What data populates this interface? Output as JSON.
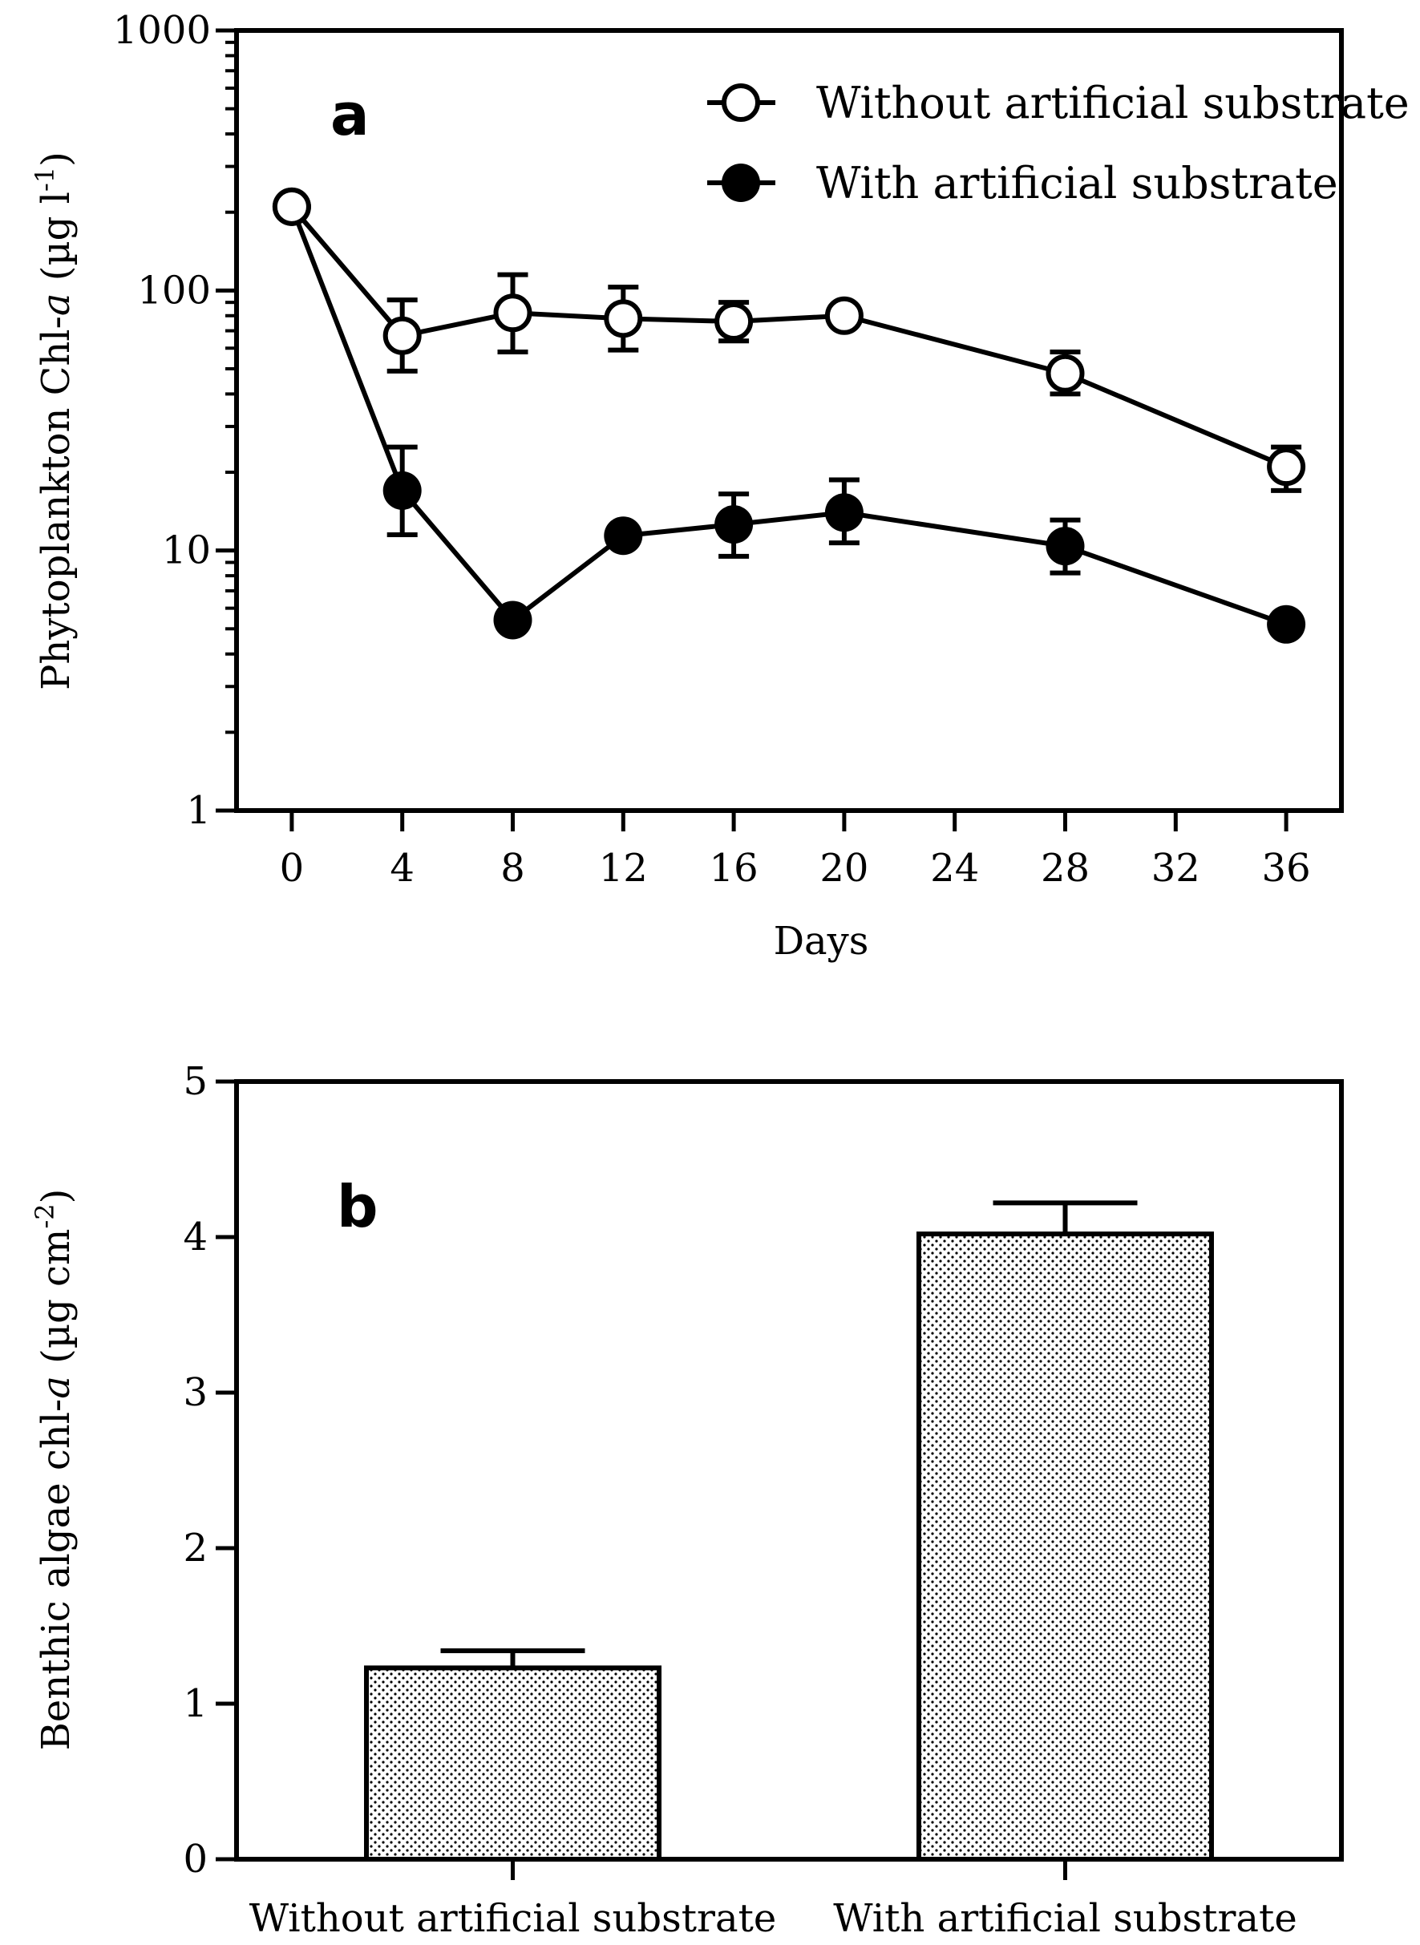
{
  "chart_data": [
    {
      "type": "line",
      "panel_label": "a",
      "yscale": "log",
      "ylim": [
        1,
        1000
      ],
      "xlim": [
        -2,
        38
      ],
      "xlabel": "Days",
      "ylabel_prefix": "Phytoplankton Chl-",
      "ylabel_italic": "a",
      "ylabel_units_open": " (µg l",
      "ylabel_units_sup": "-1",
      "ylabel_units_close": ")",
      "xticks": [
        0,
        4,
        8,
        12,
        16,
        20,
        24,
        28,
        32,
        36
      ],
      "xtick_labels": [
        "0",
        "4",
        "8",
        "12",
        "16",
        "20",
        "24",
        "28",
        "32",
        "36"
      ],
      "yticks": [
        1,
        10,
        100,
        1000
      ],
      "ytick_labels": [
        "1",
        "10",
        "100",
        "1000"
      ],
      "grid": false,
      "legend_position": "top-right",
      "series": [
        {
          "name": "Without artificial substrate",
          "marker": "open-circle",
          "x": [
            0,
            4,
            8,
            12,
            16,
            20,
            28,
            36
          ],
          "y": [
            210,
            67,
            82,
            78,
            76,
            80,
            48,
            21
          ],
          "err_low": [
            210,
            49,
            58,
            59,
            64,
            80,
            40,
            17
          ],
          "err_high": [
            210,
            92,
            115,
            103,
            90,
            80,
            58,
            25
          ]
        },
        {
          "name": "With artificial substrate",
          "marker": "filled-circle",
          "x": [
            0,
            4,
            8,
            12,
            16,
            20,
            28,
            36
          ],
          "y": [
            210,
            17,
            5.4,
            11.4,
            12.6,
            14,
            10.4,
            5.2
          ],
          "err_low": [
            210,
            11.5,
            5.4,
            11.4,
            9.5,
            10.7,
            8.2,
            5.2
          ],
          "err_high": [
            210,
            25,
            5.4,
            11.4,
            16.5,
            18.7,
            13.1,
            5.2
          ]
        }
      ]
    },
    {
      "type": "bar",
      "panel_label": "b",
      "ylim": [
        0,
        5
      ],
      "yticks": [
        0,
        1,
        2,
        3,
        4,
        5
      ],
      "ytick_labels": [
        "0",
        "1",
        "2",
        "3",
        "4",
        "5"
      ],
      "ylabel_prefix": "Benthic algae chl-",
      "ylabel_italic": "a",
      "ylabel_units_open": " (µg cm",
      "ylabel_units_sup": "-2",
      "ylabel_units_close": ")",
      "categories": [
        "Without artificial substrate",
        "With artificial substrate"
      ],
      "values": [
        1.23,
        4.02
      ],
      "errors": [
        0.11,
        0.2
      ],
      "bar_fill": "dotted",
      "grid": false
    }
  ]
}
